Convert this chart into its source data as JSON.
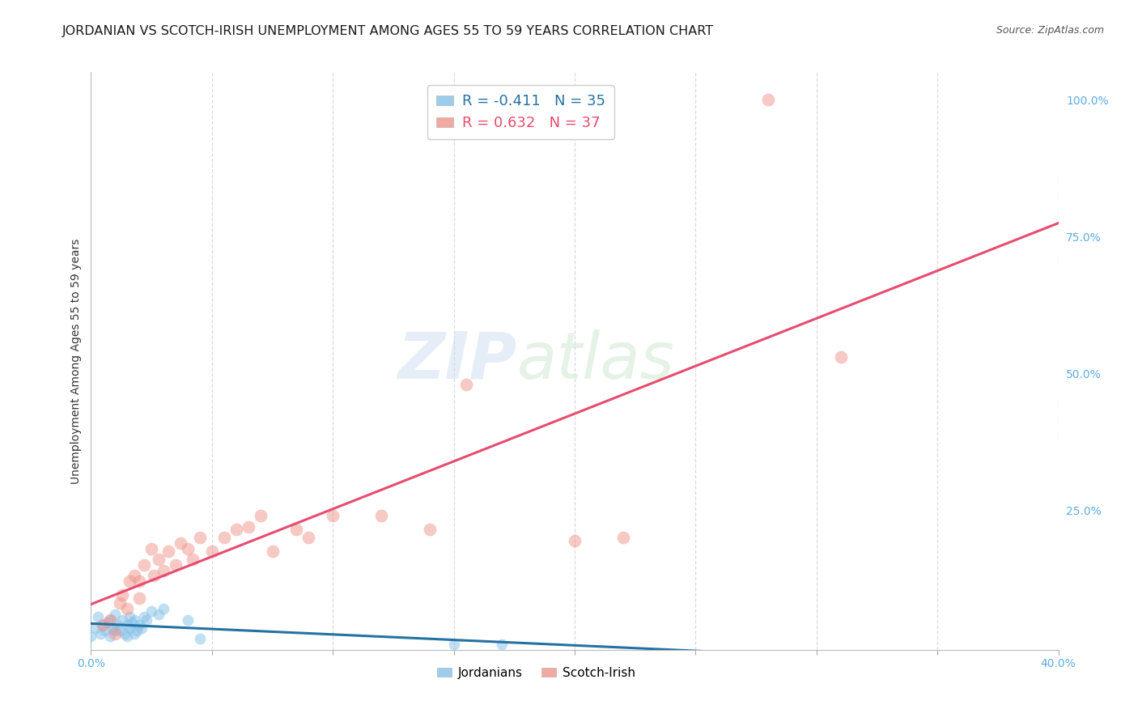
{
  "title": "JORDANIAN VS SCOTCH-IRISH UNEMPLOYMENT AMONG AGES 55 TO 59 YEARS CORRELATION CHART",
  "source": "Source: ZipAtlas.com",
  "ylabel": "Unemployment Among Ages 55 to 59 years",
  "xlim": [
    0.0,
    0.4
  ],
  "ylim": [
    -0.005,
    1.05
  ],
  "xticks": [
    0.0,
    0.05,
    0.1,
    0.15,
    0.2,
    0.25,
    0.3,
    0.35,
    0.4
  ],
  "xticklabels": [
    "0.0%",
    "",
    "",
    "",
    "",
    "",
    "",
    "",
    "40.0%"
  ],
  "yticks_right": [
    0.25,
    0.5,
    0.75,
    1.0
  ],
  "yticklabels_right": [
    "25.0%",
    "50.0%",
    "75.0%",
    "100.0%"
  ],
  "watermark_zip": "ZIP",
  "watermark_atlas": "atlas",
  "legend_jordanians_R": "-0.411",
  "legend_jordanians_N": "35",
  "legend_scotchirish_R": "0.632",
  "legend_scotchirish_N": "37",
  "jordanian_color": "#85c1e9",
  "scotchirish_color": "#f1948a",
  "jordanian_line_color": "#2471a3",
  "scotchirish_line_color": "#e74c6f",
  "jordanian_x": [
    0.0,
    0.002,
    0.003,
    0.004,
    0.005,
    0.006,
    0.007,
    0.008,
    0.008,
    0.009,
    0.01,
    0.01,
    0.011,
    0.012,
    0.013,
    0.014,
    0.015,
    0.015,
    0.016,
    0.016,
    0.017,
    0.018,
    0.018,
    0.019,
    0.02,
    0.021,
    0.022,
    0.023,
    0.025,
    0.028,
    0.03,
    0.04,
    0.045,
    0.15,
    0.17
  ],
  "jordanian_y": [
    0.02,
    0.035,
    0.055,
    0.025,
    0.04,
    0.03,
    0.045,
    0.02,
    0.05,
    0.035,
    0.03,
    0.06,
    0.04,
    0.03,
    0.05,
    0.025,
    0.02,
    0.04,
    0.035,
    0.055,
    0.045,
    0.025,
    0.05,
    0.03,
    0.04,
    0.035,
    0.055,
    0.05,
    0.065,
    0.06,
    0.07,
    0.05,
    0.015,
    0.005,
    0.005
  ],
  "scotchirish_x": [
    0.005,
    0.008,
    0.01,
    0.012,
    0.013,
    0.015,
    0.016,
    0.018,
    0.02,
    0.02,
    0.022,
    0.025,
    0.026,
    0.028,
    0.03,
    0.032,
    0.035,
    0.037,
    0.04,
    0.042,
    0.045,
    0.05,
    0.055,
    0.06,
    0.065,
    0.07,
    0.075,
    0.085,
    0.09,
    0.1,
    0.12,
    0.14,
    0.155,
    0.2,
    0.22,
    0.28,
    0.31
  ],
  "scotchirish_y": [
    0.04,
    0.05,
    0.025,
    0.08,
    0.095,
    0.07,
    0.12,
    0.13,
    0.09,
    0.12,
    0.15,
    0.18,
    0.13,
    0.16,
    0.14,
    0.175,
    0.15,
    0.19,
    0.18,
    0.16,
    0.2,
    0.175,
    0.2,
    0.215,
    0.22,
    0.24,
    0.175,
    0.215,
    0.2,
    0.24,
    0.24,
    0.215,
    0.48,
    0.195,
    0.2,
    1.0,
    0.53
  ],
  "background_color": "#ffffff",
  "grid_color": "#d5d8dc",
  "title_fontsize": 11.5,
  "axis_label_fontsize": 10,
  "tick_fontsize": 10,
  "right_tick_color": "#5dade2",
  "x_tick_color": "#5dade2",
  "legend_fontsize": 13
}
